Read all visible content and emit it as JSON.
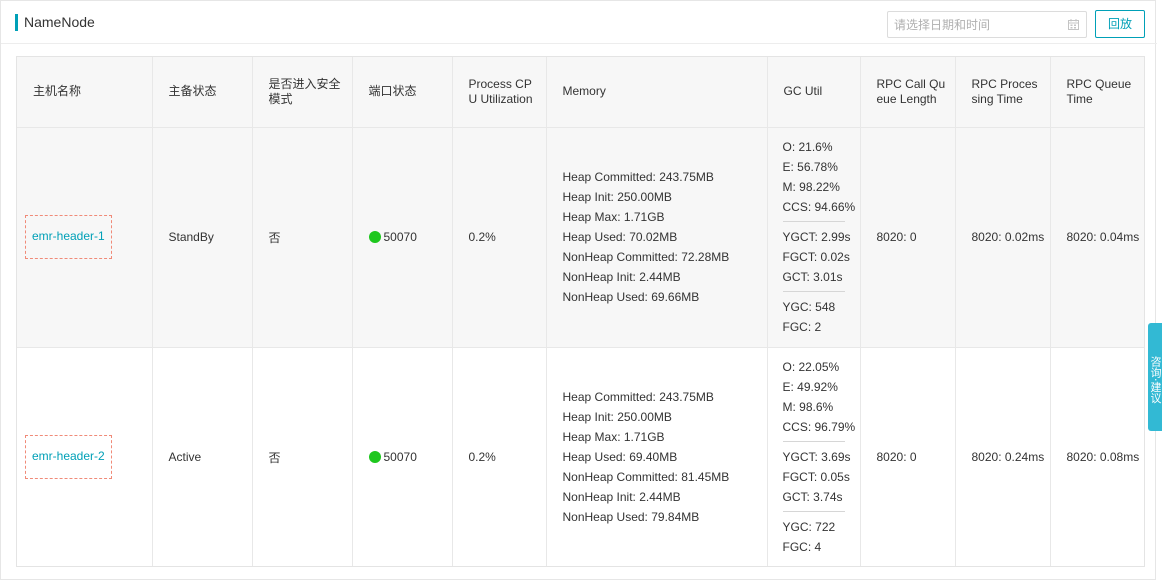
{
  "header": {
    "title": "NameNode",
    "date_placeholder": "请选择日期和时间",
    "replay_label": "回放"
  },
  "colors": {
    "accent": "#00a0b7",
    "status_green": "#1ec71e",
    "highlight_dashed": "#f08a78",
    "side_tab": "#32b9d4"
  },
  "table": {
    "columns": [
      "主机名称",
      "主备状态",
      "是否进入安全模式",
      "端口状态",
      "Process CPU Utilization",
      "Memory",
      "GC Util",
      "RPC Call Queue Length",
      "RPC Processing Time",
      "RPC Queue Time"
    ],
    "rows": [
      {
        "host": "emr-header-1",
        "ha_state": "StandBy",
        "safe_mode": "否",
        "port": "50070",
        "cpu": "0.2%",
        "memory": [
          "Heap Committed: 243.75MB",
          "Heap Init: 250.00MB",
          "Heap Max: 1.71GB",
          "Heap Used: 70.02MB",
          "NonHeap Committed: 72.28MB",
          "NonHeap Init: 2.44MB",
          "NonHeap Used: 69.66MB"
        ],
        "gc_util": [
          "O: 21.6%",
          "E: 56.78%",
          "M: 98.22%",
          "CCS: 94.66%"
        ],
        "gc_time": [
          "YGCT: 2.99s",
          "FGCT: 0.02s",
          "GCT: 3.01s"
        ],
        "gc_count": [
          "YGC: 548",
          "FGC: 2"
        ],
        "rpc_queue_len": "8020: 0",
        "rpc_proc_time": "8020: 0.02ms",
        "rpc_queue_time": "8020: 0.04ms"
      },
      {
        "host": "emr-header-2",
        "ha_state": "Active",
        "safe_mode": "否",
        "port": "50070",
        "cpu": "0.2%",
        "memory": [
          "Heap Committed: 243.75MB",
          "Heap Init: 250.00MB",
          "Heap Max: 1.71GB",
          "Heap Used: 69.40MB",
          "NonHeap Committed: 81.45MB",
          "NonHeap Init: 2.44MB",
          "NonHeap Used: 79.84MB"
        ],
        "gc_util": [
          "O: 22.05%",
          "E: 49.92%",
          "M: 98.6%",
          "CCS: 96.79%"
        ],
        "gc_time": [
          "YGCT: 3.69s",
          "FGCT: 0.05s",
          "GCT: 3.74s"
        ],
        "gc_count": [
          "YGC: 722",
          "FGC: 4"
        ],
        "rpc_queue_len": "8020: 0",
        "rpc_proc_time": "8020: 0.24ms",
        "rpc_queue_time": "8020: 0.08ms"
      }
    ]
  },
  "side_tab": {
    "label": "咨询·建议"
  }
}
